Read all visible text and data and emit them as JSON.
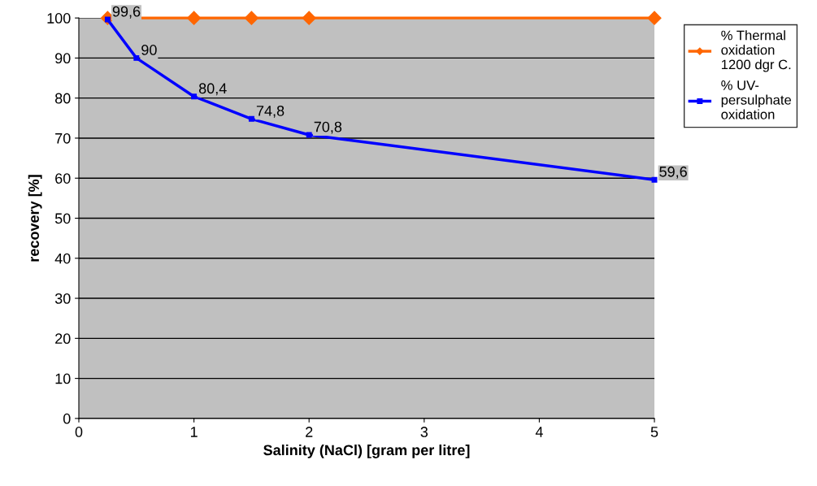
{
  "chart_data": {
    "type": "line",
    "xlabel": "Salinity (NaCl) [gram per litre]",
    "ylabel": "recovery [%]",
    "xlim": [
      0,
      5
    ],
    "xticks": [
      0,
      1,
      2,
      3,
      4,
      5
    ],
    "ylim": [
      0,
      100
    ],
    "yticks": [
      0,
      10,
      20,
      30,
      40,
      50,
      60,
      70,
      80,
      90,
      100
    ],
    "grid": "y",
    "legend": "right",
    "series": [
      {
        "name": "% Thermal\noxidation\n1200 dgr C.",
        "color": "#ff6600",
        "x": [
          0.25,
          1,
          1.5,
          2,
          5
        ],
        "values": [
          100,
          100,
          100,
          100,
          100
        ],
        "marker": "diamond"
      },
      {
        "name": "% UV-\npersulphate\noxidation",
        "color": "#0000ff",
        "x": [
          0.25,
          0.5,
          1,
          1.5,
          2,
          5
        ],
        "values": [
          99.6,
          90,
          80.4,
          74.8,
          70.8,
          59.6
        ],
        "marker": "square",
        "value_labels": [
          "99,6",
          "90",
          "80,4",
          "74,8",
          "70,8",
          "59,6"
        ]
      }
    ]
  }
}
